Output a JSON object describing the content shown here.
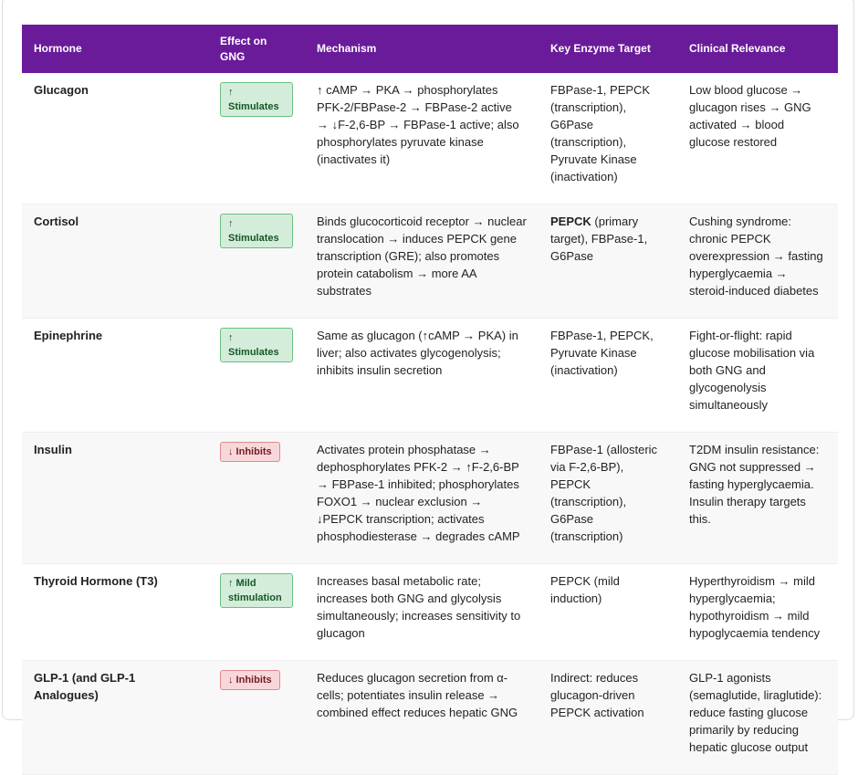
{
  "headers": [
    "Hormone",
    "Effect on GNG",
    "Mechanism",
    "Key Enzyme Target",
    "Clinical Relevance"
  ],
  "colors": {
    "header_bg": "#6a1b9a",
    "stimulate_bg": "#d4edda",
    "stimulate_text": "#155724",
    "inhibit_bg": "#f8d7da",
    "inhibit_text": "#721c24"
  },
  "rows": [
    {
      "hormone": "Glucagon",
      "effect": "↑ Stimulates",
      "effect_type": "stimulate",
      "mechanism": "↑ cAMP → PKA → phosphorylates PFK-2/FBPase-2 → FBPase-2 active → ↓F-2,6-BP → FBPase-1 active; also phosphorylates pyruvate kinase (inactivates it)",
      "enzyme_bold": "",
      "enzyme": "FBPase-1, PEPCK (transcription), G6Pase (transcription), Pyruvate Kinase (inactivation)",
      "clinical": "Low blood glucose → glucagon rises → GNG activated → blood glucose restored"
    },
    {
      "hormone": "Cortisol",
      "effect": "↑ Stimulates",
      "effect_type": "stimulate",
      "mechanism": "Binds glucocorticoid receptor → nuclear translocation → induces PEPCK gene transcription (GRE); also promotes protein catabolism → more AA substrates",
      "enzyme_bold": "PEPCK",
      "enzyme": " (primary target), FBPase-1, G6Pase",
      "clinical": "Cushing syndrome: chronic PEPCK overexpression → fasting hyperglycaemia → steroid-induced diabetes"
    },
    {
      "hormone": "Epinephrine",
      "effect": "↑ Stimulates",
      "effect_type": "stimulate",
      "mechanism": "Same as glucagon (↑cAMP → PKA) in liver; also activates glycogenolysis; inhibits insulin secretion",
      "enzyme_bold": "",
      "enzyme": "FBPase-1, PEPCK, Pyruvate Kinase (inactivation)",
      "clinical": "Fight-or-flight: rapid glucose mobilisation via both GNG and glycogenolysis simultaneously"
    },
    {
      "hormone": "Insulin",
      "effect": "↓ Inhibits",
      "effect_type": "inhibit",
      "mechanism": "Activates protein phosphatase → dephosphorylates PFK-2 → ↑F-2,6-BP → FBPase-1 inhibited; phosphorylates FOXO1 → nuclear exclusion → ↓PEPCK transcription; activates phosphodiesterase → degrades cAMP",
      "enzyme_bold": "",
      "enzyme": "FBPase-1 (allosteric via F-2,6-BP), PEPCK (transcription), G6Pase (transcription)",
      "clinical": "T2DM insulin resistance: GNG not suppressed → fasting hyperglycaemia. Insulin therapy targets this."
    },
    {
      "hormone": "Thyroid Hormone (T3)",
      "effect": "↑ Mild stimulation",
      "effect_type": "stimulate",
      "mechanism": "Increases basal metabolic rate; increases both GNG and glycolysis simultaneously; increases sensitivity to glucagon",
      "enzyme_bold": "",
      "enzyme": "PEPCK (mild induction)",
      "clinical": "Hyperthyroidism → mild hyperglycaemia; hypothyroidism → mild hypoglycaemia tendency"
    },
    {
      "hormone": "GLP-1 (and GLP-1 Analogues)",
      "effect": "↓ Inhibits",
      "effect_type": "inhibit",
      "mechanism": "Reduces glucagon secretion from α-cells; potentiates insulin release → combined effect reduces hepatic GNG",
      "enzyme_bold": "",
      "enzyme": "Indirect: reduces glucagon-driven PEPCK activation",
      "clinical": "GLP-1 agonists (semaglutide, liraglutide): reduce fasting glucose primarily by reducing hepatic glucose output"
    }
  ]
}
